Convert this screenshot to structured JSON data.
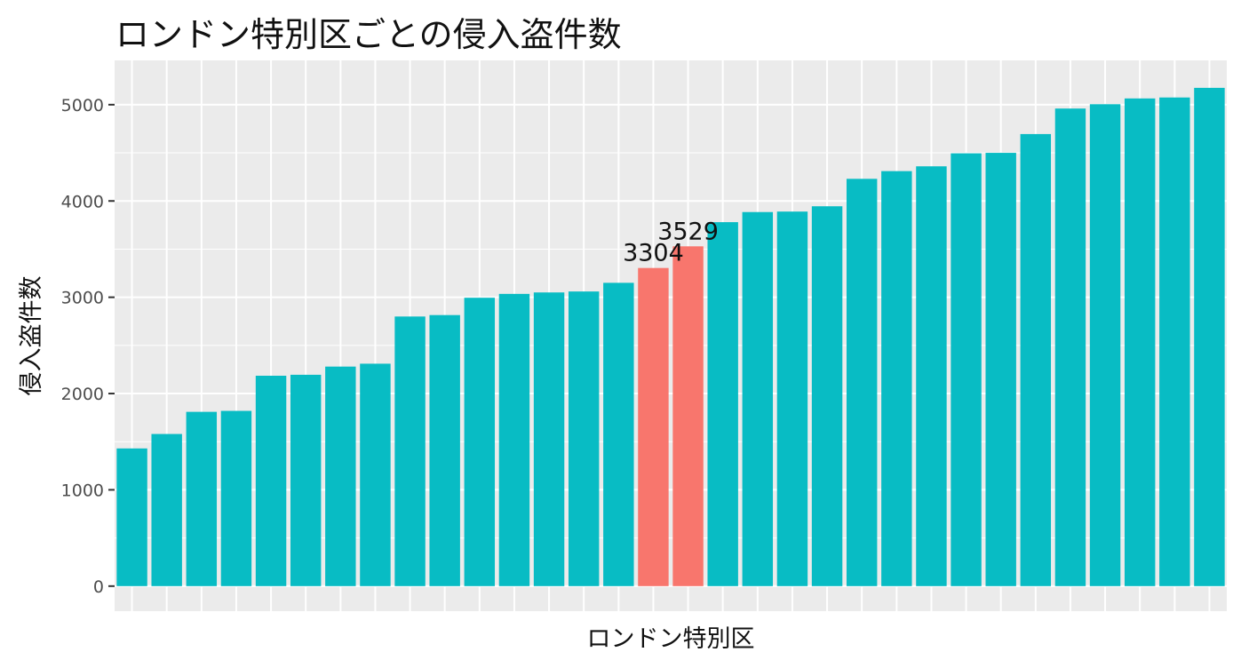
{
  "chart_data": {
    "type": "bar",
    "title": "ロンドン特別区ごとの侵入盗件数",
    "xlabel": "ロンドン特別区",
    "ylabel": "侵入盗件数",
    "ylim": [
      -260,
      5460
    ],
    "yticks": [
      0,
      1000,
      2000,
      3000,
      4000,
      5000
    ],
    "grid": true,
    "legend": "none",
    "colors": {
      "default": "#08BCC4",
      "highlight": "#F8766D",
      "panel": "#EBEBEB",
      "grid": "#FFFFFF"
    },
    "values": [
      1430,
      1580,
      1810,
      1820,
      2185,
      2195,
      2280,
      2310,
      2800,
      2815,
      2995,
      3035,
      3050,
      3060,
      3150,
      3304,
      3529,
      3780,
      3885,
      3890,
      3945,
      4230,
      4310,
      4360,
      4495,
      4500,
      4695,
      4960,
      5005,
      5065,
      5075,
      5175
    ],
    "highlight": [
      false,
      false,
      false,
      false,
      false,
      false,
      false,
      false,
      false,
      false,
      false,
      false,
      false,
      false,
      false,
      true,
      true,
      false,
      false,
      false,
      false,
      false,
      false,
      false,
      false,
      false,
      false,
      false,
      false,
      false,
      false,
      false
    ],
    "data_labels": [
      "",
      "",
      "",
      "",
      "",
      "",
      "",
      "",
      "",
      "",
      "",
      "",
      "",
      "",
      "",
      "3304",
      "3529",
      "",
      "",
      "",
      "",
      "",
      "",
      "",
      "",
      "",
      "",
      "",
      "",
      "",
      "",
      ""
    ]
  }
}
